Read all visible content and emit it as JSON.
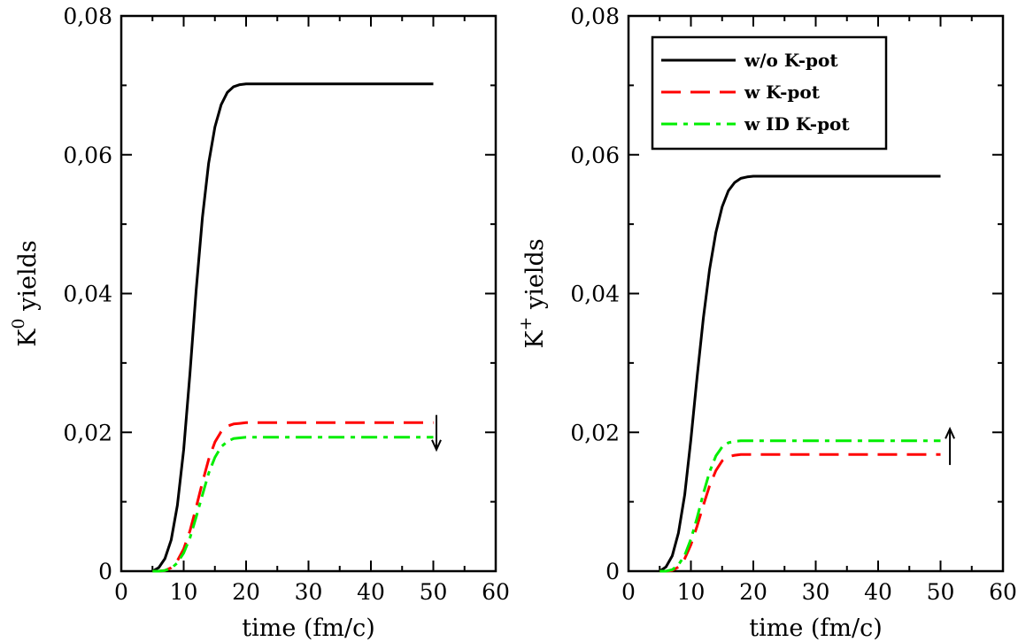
{
  "chart_data": [
    {
      "type": "line",
      "xlabel": "time (fm/c)",
      "ylabel_main": "K",
      "ylabel_sup": "0",
      "ylabel_rest": " yields",
      "xlim": [
        0,
        60
      ],
      "ylim": [
        0,
        0.08
      ],
      "x_ticks": [
        0,
        10,
        20,
        30,
        40,
        50,
        60
      ],
      "x_tick_labels": [
        "0",
        "10",
        "20",
        "30",
        "40",
        "50",
        "60"
      ],
      "y_ticks": [
        0,
        0.02,
        0.04,
        0.06,
        0.08
      ],
      "y_tick_labels": [
        "0",
        "0,02",
        "0,04",
        "0,06",
        "0,08"
      ],
      "x": [
        5,
        6,
        7,
        8,
        9,
        10,
        11,
        12,
        13,
        14,
        15,
        16,
        17,
        18,
        19,
        20,
        22,
        25,
        30,
        35,
        40,
        45,
        50
      ],
      "series": [
        {
          "values": [
            0,
            0.0005,
            0.0018,
            0.0045,
            0.0095,
            0.0175,
            0.0285,
            0.0405,
            0.051,
            0.0588,
            0.064,
            0.0672,
            0.069,
            0.0698,
            0.0701,
            0.0702,
            0.0702,
            0.0702,
            0.0702,
            0.0702,
            0.0702,
            0.0702,
            0.0702
          ],
          "color": "#000000",
          "dash": "solid"
        },
        {
          "values": [
            0,
            0,
            0.0001,
            0.0005,
            0.0015,
            0.0032,
            0.0058,
            0.0092,
            0.0128,
            0.0161,
            0.0186,
            0.0201,
            0.0209,
            0.0212,
            0.0213,
            0.0214,
            0.0214,
            0.0214,
            0.0214,
            0.0214,
            0.0214,
            0.0214,
            0.0214
          ],
          "color": "#ff0000",
          "dash": "dashed"
        },
        {
          "values": [
            0,
            0,
            0.0001,
            0.0004,
            0.0012,
            0.0026,
            0.0048,
            0.0078,
            0.011,
            0.0141,
            0.0164,
            0.0179,
            0.0187,
            0.0191,
            0.0192,
            0.0193,
            0.0193,
            0.0193,
            0.0193,
            0.0193,
            0.0193,
            0.0193,
            0.0193
          ],
          "color": "#00ee00",
          "dash": "dashdot"
        }
      ],
      "annotation": {
        "type": "arrow",
        "direction": "down",
        "x": 50.5,
        "y_from": 0.0225,
        "y_to": 0.0175
      }
    },
    {
      "type": "line",
      "xlabel": "time (fm/c)",
      "ylabel_main": "K",
      "ylabel_sup": "+",
      "ylabel_rest": " yields",
      "xlim": [
        0,
        60
      ],
      "ylim": [
        0,
        0.08
      ],
      "x_ticks": [
        0,
        10,
        20,
        30,
        40,
        50,
        60
      ],
      "x_tick_labels": [
        "0",
        "10",
        "20",
        "30",
        "40",
        "50",
        "60"
      ],
      "y_ticks": [
        0,
        0.02,
        0.04,
        0.06,
        0.08
      ],
      "y_tick_labels": [
        "0",
        "0,02",
        "0,04",
        "0,06",
        "0,08"
      ],
      "legend_position": "top-right",
      "x": [
        5,
        6,
        7,
        8,
        9,
        10,
        11,
        12,
        13,
        14,
        15,
        16,
        17,
        18,
        19,
        20,
        22,
        25,
        30,
        35,
        40,
        45,
        50
      ],
      "series": [
        {
          "name": "w/o K-pot",
          "values": [
            0,
            0.0006,
            0.0022,
            0.0055,
            0.011,
            0.019,
            0.028,
            0.0365,
            0.0435,
            0.0488,
            0.0525,
            0.0548,
            0.056,
            0.0566,
            0.0568,
            0.0569,
            0.0569,
            0.0569,
            0.0569,
            0.0569,
            0.0569,
            0.0569,
            0.0569
          ],
          "color": "#000000",
          "dash": "solid"
        },
        {
          "name": "w K-pot",
          "values": [
            0,
            0,
            0.0001,
            0.0006,
            0.0018,
            0.0038,
            0.0065,
            0.0095,
            0.0123,
            0.0145,
            0.0159,
            0.0165,
            0.0167,
            0.0168,
            0.0168,
            0.0168,
            0.0168,
            0.0168,
            0.0168,
            0.0168,
            0.0168,
            0.0168,
            0.0168
          ],
          "color": "#ff0000",
          "dash": "dashed"
        },
        {
          "name": "w ID K-pot",
          "values": [
            0,
            0,
            0.0002,
            0.0009,
            0.0023,
            0.0046,
            0.0077,
            0.0112,
            0.0143,
            0.0166,
            0.0179,
            0.0185,
            0.0187,
            0.0188,
            0.0188,
            0.0188,
            0.0188,
            0.0188,
            0.0188,
            0.0188,
            0.0188,
            0.0188,
            0.0188
          ],
          "color": "#00ee00",
          "dash": "dashdot"
        }
      ],
      "annotation": {
        "type": "arrow",
        "direction": "up",
        "x": 51.5,
        "y_from": 0.0153,
        "y_to": 0.0205
      }
    }
  ]
}
